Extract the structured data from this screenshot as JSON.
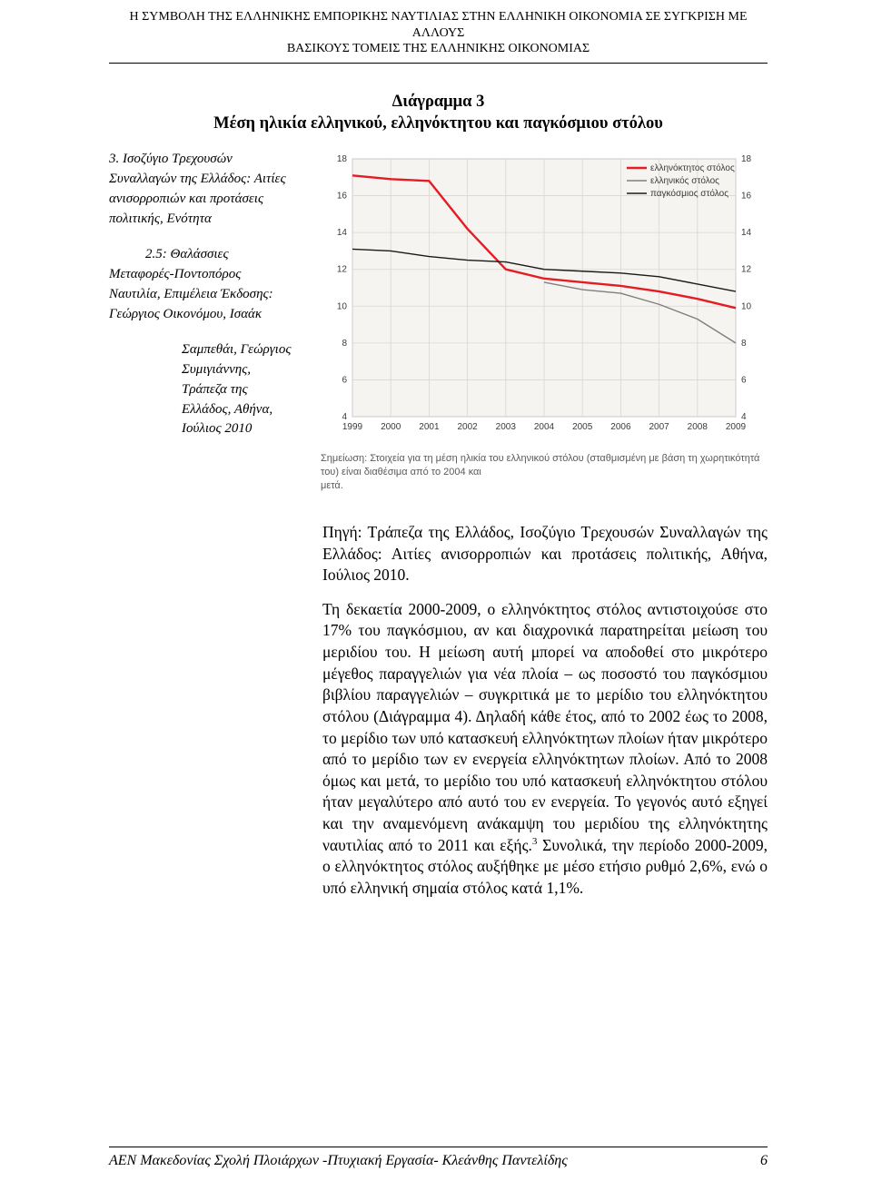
{
  "header": {
    "line1": "Η ΣΥΜΒΟΛΗ ΤΗΣ ΕΛΛΗΝΙΚΗΣ ΕΜΠΟΡΙΚΗΣ ΝΑΥΤΙΛΙΑΣ ΣΤΗΝ ΕΛΛΗΝΙΚΗ ΟΙΚΟΝΟΜΙΑ ΣΕ ΣΥΓΚΡΙΣΗ ΜΕ ΑΛΛΟΥΣ",
    "line2": "ΒΑΣΙΚΟΥΣ ΤΟΜΕΙΣ ΤΗΣ ΕΛΛΗΝΙΚΗΣ ΟΙΚΟΝΟΜΙΑΣ"
  },
  "figure_title": {
    "line1": "Διάγραμμα 3",
    "line2": "Μέση ηλικία ελληνικού, ελληνόκτητου και παγκόσμιου στόλου"
  },
  "sidebar": {
    "ref1": "3. Ισοζύγιο Τρεχουσών Συναλλαγών της Ελλάδος: Αιτίες ανισορροπιών και προτάσεις πολιτικής, Ενότητα",
    "ref2_first": "2.5: Θαλάσσιες",
    "ref2_rest": "Μεταφορές-Ποντοπόρος Ναυτιλία, Επιμέλεια Έκδοσης: Γεώργιος Οικονόμου, Ισαάκ",
    "ref3": "Σαμπεθάι, Γεώργιος Συμιγιάννης, Τράπεζα της Ελλάδος, Αθήνα, Ιούλιος 2010"
  },
  "chart": {
    "type": "line",
    "background_color": "#f5f4f1",
    "gridline_color": "#d9d7d2",
    "border_color": "#888888",
    "axis_fontsize": 10,
    "axis_color": "#3a3a3a",
    "legend_fontsize": 10,
    "legend_color": "#3a3a3a",
    "x": {
      "min": 1999,
      "max": 2009,
      "ticks": [
        1999,
        2000,
        2001,
        2002,
        2003,
        2004,
        2005,
        2006,
        2007,
        2008,
        2009
      ]
    },
    "y": {
      "min": 4,
      "max": 18,
      "ticks": [
        4,
        6,
        8,
        10,
        12,
        14,
        16,
        18
      ]
    },
    "series": [
      {
        "name": "ελληνόκτητος στόλος",
        "label": "ελληνόκτητος στόλος",
        "color": "#e51c23",
        "width": 2.4,
        "data": [
          17.1,
          16.9,
          16.8,
          14.2,
          12.0,
          11.5,
          11.3,
          11.1,
          10.8,
          10.4,
          9.9
        ]
      },
      {
        "name": "ελληνικός στόλος",
        "label": "ελληνικός στόλος",
        "color": "#7f7f7f",
        "width": 1.4,
        "data": [
          null,
          null,
          null,
          null,
          null,
          11.3,
          10.9,
          10.7,
          10.1,
          9.3,
          8.0
        ]
      },
      {
        "name": "παγκόσμιος στόλος",
        "label": "παγκόσμιος στόλος",
        "color": "#1a1a1a",
        "width": 1.4,
        "data": [
          13.1,
          13.0,
          12.7,
          12.5,
          12.4,
          12.0,
          11.9,
          11.8,
          11.6,
          11.2,
          10.8
        ]
      }
    ]
  },
  "chart_footnote": {
    "line1": "Σημείωση: Στοιχεία για τη μέση ηλικία του ελληνικού στόλου (σταθμισμένη με βάση τη χωρητικότητά του) είναι διαθέσιμα από το 2004 και",
    "line2": "μετά."
  },
  "paras": {
    "p1": "Πηγή: Τράπεζα της Ελλάδος, Ισοζύγιο Τρεχουσών Συναλλαγών της Ελλάδος: Αιτίες ανισορροπιών και προτάσεις πολιτικής, Αθήνα, Ιούλιος 2010.",
    "p2_a": "Τη δεκαετία 2000-2009, ο ελληνόκτητος στόλος αντιστοιχούσε στο 17% του παγκόσμιου, αν και διαχρονικά παρατηρείται μείωση του μεριδίου του. Η μείωση αυτή μπορεί να αποδοθεί στο μικρότερο μέγεθος παραγγελιών για νέα πλοία – ως ποσοστό του παγκόσμιου βιβλίου παραγγελιών – συγκριτικά με το μερίδιο του ελληνόκτητου στόλου (Διάγραμμα 4). Δηλαδή κάθε έτος, από το 2002 έως το 2008, το μερίδιο των υπό κατασκευή ελληνόκτητων πλοίων ήταν μικρότερο από το μερίδιο των εν ενεργεία ελληνόκτητων πλοίων. Από το 2008 όμως και μετά, το μερίδιο του υπό κατασκευή ελληνόκτητου στόλου ήταν μεγαλύτερο από αυτό του εν ενεργεία. Το γεγονός αυτό εξηγεί και την αναμενόμενη ανάκαμψη του μεριδίου της ελληνόκτητης ναυτιλίας από το 2011 και εξής.",
    "p2_sup": "3",
    "p2_b": " Συνολικά, την περίοδο 2000-2009, ο ελληνόκτητος στόλος αυξήθηκε με μέσο ετήσιο ρυθμό 2,6%, ενώ ο υπό ελληνική σημαία στόλος κατά 1,1%."
  },
  "footer": {
    "text": "ΑΕΝ Μακεδονίας Σχολή Πλοιάρχων -Πτυχιακή Εργασία- Κλεάνθης Παντελίδης",
    "page": "6"
  }
}
